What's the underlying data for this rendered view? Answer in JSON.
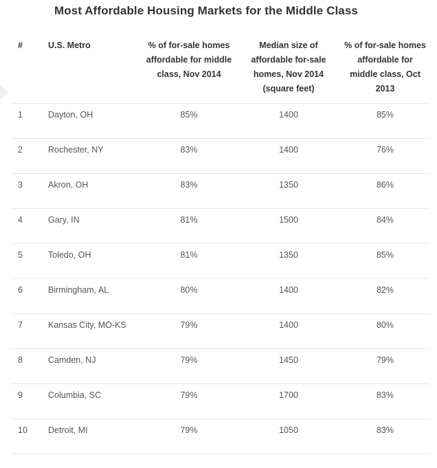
{
  "title": "Most Affordable Housing Markets for the Middle Class",
  "headers": {
    "rank": "#",
    "metro": "U.S. Metro",
    "pct_nov2014": "% of for-sale homes affordable for middle class, Nov 2014",
    "median_size": "Median size of affordable for-sale homes, Nov 2014 (square feet)",
    "pct_oct2013": "% of for-sale homes affordable for middle class, Oct 2013"
  },
  "rows": [
    {
      "rank": "1",
      "metro": "Dayton, OH",
      "pct_nov2014": "85%",
      "median_size": "1400",
      "pct_oct2013": "85%"
    },
    {
      "rank": "2",
      "metro": "Rochester, NY",
      "pct_nov2014": "83%",
      "median_size": "1400",
      "pct_oct2013": "76%"
    },
    {
      "rank": "3",
      "metro": "Akron, OH",
      "pct_nov2014": "83%",
      "median_size": "1350",
      "pct_oct2013": "86%"
    },
    {
      "rank": "4",
      "metro": "Gary, IN",
      "pct_nov2014": "81%",
      "median_size": "1500",
      "pct_oct2013": "84%"
    },
    {
      "rank": "5",
      "metro": "Toledo, OH",
      "pct_nov2014": "81%",
      "median_size": "1350",
      "pct_oct2013": "85%"
    },
    {
      "rank": "6",
      "metro": "Birmingham, AL",
      "pct_nov2014": "80%",
      "median_size": "1400",
      "pct_oct2013": "82%"
    },
    {
      "rank": "7",
      "metro": "Kansas City, MO-KS",
      "pct_nov2014": "79%",
      "median_size": "1400",
      "pct_oct2013": "80%"
    },
    {
      "rank": "8",
      "metro": "Camden, NJ",
      "pct_nov2014": "79%",
      "median_size": "1450",
      "pct_oct2013": "79%"
    },
    {
      "rank": "9",
      "metro": "Columbia, SC",
      "pct_nov2014": "79%",
      "median_size": "1700",
      "pct_oct2013": "83%"
    },
    {
      "rank": "10",
      "metro": "Detroit, MI",
      "pct_nov2014": "79%",
      "median_size": "1050",
      "pct_oct2013": "83%"
    }
  ]
}
